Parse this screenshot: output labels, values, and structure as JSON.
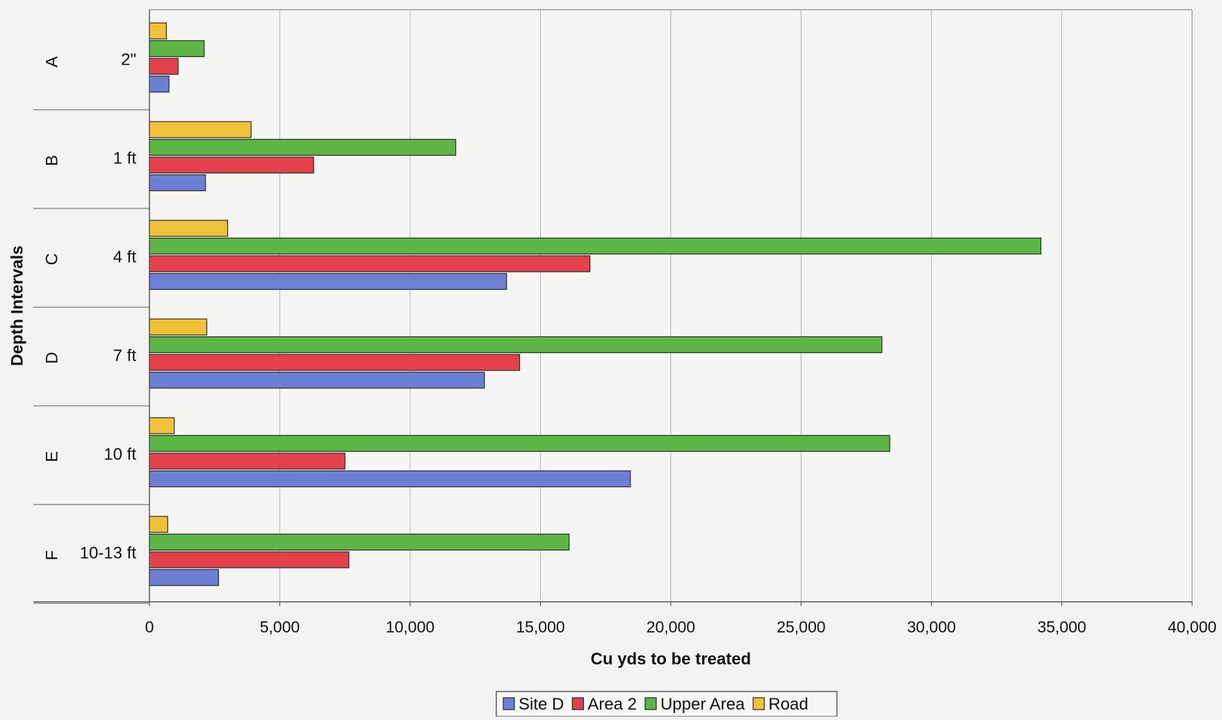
{
  "chart_data": {
    "type": "bar",
    "orientation": "horizontal",
    "title": "",
    "xlabel": "Cu yds to be treated",
    "ylabel": "Depth Intervals",
    "xlim": [
      0,
      40000
    ],
    "x_ticks": [
      0,
      5000,
      10000,
      15000,
      20000,
      25000,
      30000,
      35000,
      40000
    ],
    "x_tick_labels": [
      "0",
      "5,000",
      "10,000",
      "15,000",
      "20,000",
      "25,000",
      "30,000",
      "35,000",
      "40,000"
    ],
    "grid": "vertical",
    "legend_position": "bottom",
    "categories": [
      {
        "group": "A",
        "label": "2\""
      },
      {
        "group": "B",
        "label": "1 ft"
      },
      {
        "group": "C",
        "label": "4 ft"
      },
      {
        "group": "D",
        "label": "7 ft"
      },
      {
        "group": "E",
        "label": "10 ft"
      },
      {
        "group": "F",
        "label": "10-13 ft"
      }
    ],
    "series": [
      {
        "name": "Site D",
        "color": "#6c7fd3",
        "values": [
          750,
          2150,
          13700,
          12850,
          18450,
          2650
        ]
      },
      {
        "name": "Area 2",
        "color": "#e3414c",
        "values": [
          1100,
          6300,
          16900,
          14200,
          7500,
          7650
        ]
      },
      {
        "name": "Upper Area",
        "color": "#5cb544",
        "values": [
          2100,
          11750,
          34200,
          28100,
          28400,
          16100
        ]
      },
      {
        "name": "Road",
        "color": "#efc23a",
        "values": [
          650,
          3900,
          3000,
          2200,
          950,
          700
        ]
      }
    ]
  }
}
